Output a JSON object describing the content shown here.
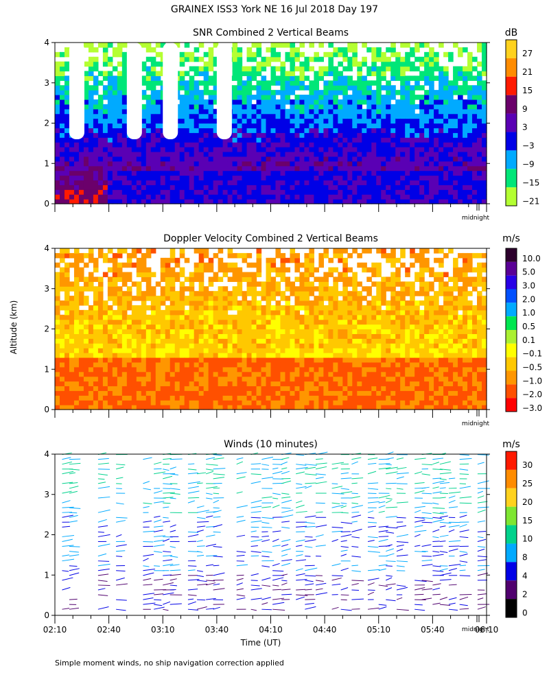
{
  "page_title": "GRAINEX ISS3 York NE   16 Jul 2018 Day 197",
  "ylabel": "Altitude (km)",
  "xlabel": "Time (UT)",
  "footnote": "Simple moment winds, no ship navigation correction applied",
  "midnight_label": "midnight",
  "chart_data": [
    {
      "type": "heatmap",
      "title": "SNR Combined 2 Vertical Beams",
      "unit": "dB",
      "y_ticks": [
        "0",
        "1",
        "2",
        "3",
        "4"
      ],
      "ylim": [
        0,
        4
      ],
      "xlim": [
        "02:10",
        "06:10"
      ],
      "colorbar": {
        "labels": [
          "27",
          "21",
          "15",
          "9",
          "3",
          "−3",
          "−9",
          "−15",
          "−21"
        ],
        "colors": [
          "#ffd21e",
          "#ff8c00",
          "#ff1a00",
          "#6b006b",
          "#5a00b4",
          "#0000e6",
          "#00aaff",
          "#00e678",
          "#b4ff32"
        ]
      },
      "data_gaps": [
        "02:18",
        "02:50",
        "03:10",
        "03:40"
      ]
    },
    {
      "type": "heatmap",
      "title": "Doppler Velocity Combined 2 Vertical Beams",
      "unit": "m/s",
      "y_ticks": [
        "0",
        "1",
        "2",
        "3",
        "4"
      ],
      "ylim": [
        0,
        4
      ],
      "xlim": [
        "02:10",
        "06:10"
      ],
      "colorbar": {
        "labels": [
          "10.0",
          "5.0",
          "3.0",
          "2.0",
          "1.0",
          "0.5",
          "0.1",
          "−0.1",
          "−0.5",
          "−1.0",
          "−2.0",
          "−3.0"
        ],
        "colors": [
          "#2d002d",
          "#5a0096",
          "#2800e6",
          "#0050ff",
          "#00aaff",
          "#00e650",
          "#aaf032",
          "#ffff00",
          "#ffc800",
          "#ff9600",
          "#ff5000",
          "#ff0000"
        ]
      }
    },
    {
      "type": "scatter",
      "title": "Winds (10 minutes)",
      "unit": "m/s",
      "y_ticks": [
        "0",
        "1",
        "2",
        "3",
        "4"
      ],
      "x_ticks": [
        "02:10",
        "02:40",
        "03:10",
        "03:40",
        "04:10",
        "04:40",
        "05:10",
        "05:40",
        "06:10"
      ],
      "ylim": [
        0,
        4
      ],
      "xlim": [
        "02:10",
        "06:10"
      ],
      "colorbar": {
        "labels": [
          "30",
          "25",
          "20",
          "15",
          "10",
          "8",
          "4",
          "2",
          "0"
        ],
        "colors": [
          "#ff1a00",
          "#ff8c00",
          "#ffd21e",
          "#7ee632",
          "#00d28c",
          "#00aaff",
          "#0000e6",
          "#50006e",
          "#000000"
        ]
      },
      "profile_times": [
        "02:14",
        "02:18",
        "02:34",
        "02:44",
        "02:59",
        "03:05",
        "03:10",
        "03:14",
        "03:24",
        "03:29",
        "03:34",
        "03:38",
        "03:51",
        "03:59",
        "04:05",
        "04:11",
        "04:16",
        "04:24",
        "04:29",
        "04:35",
        "04:44",
        "04:49",
        "04:55",
        "05:04",
        "05:10",
        "05:14",
        "05:20",
        "05:30",
        "05:34",
        "05:40",
        "05:44",
        "05:49",
        "05:55",
        "06:05"
      ]
    }
  ]
}
